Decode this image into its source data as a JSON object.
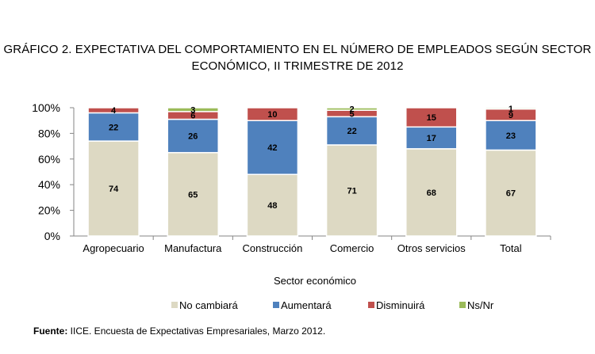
{
  "title_line1": "GRÁFICO 2. EXPECTATIVA DEL COMPORTAMIENTO EN EL NÚMERO DE EMPLEADOS SEGÚN SECTOR",
  "title_line2": "ECONÓMICO,  II TRIMESTRE DE 2012",
  "footer": {
    "label": "Fuente:",
    "text": " IICE. Encuesta de Expectativas Empresariales, Marzo  2012."
  },
  "chart_data": {
    "type": "bar",
    "stacked": true,
    "categories": [
      "Agropecuario",
      "Manufactura",
      "Construcción",
      "Comercio",
      "Otros servicios",
      "Total"
    ],
    "series": [
      {
        "name": "No cambiará",
        "color": "#ddd9c3",
        "values": [
          74,
          65,
          48,
          71,
          68,
          67
        ]
      },
      {
        "name": "Aumentará",
        "color": "#4f81bd",
        "values": [
          22,
          26,
          42,
          22,
          17,
          23
        ]
      },
      {
        "name": "Disminuirá",
        "color": "#c0504d",
        "values": [
          4,
          6,
          10,
          5,
          15,
          9
        ]
      },
      {
        "name": "Ns/Nr",
        "color": "#9bbb59",
        "values": [
          0,
          3,
          0,
          2,
          0,
          1
        ]
      }
    ],
    "xlabel": "Sector económico",
    "ylabel": "",
    "ylim": [
      0,
      100
    ],
    "yticks": [
      "0%",
      "20%",
      "40%",
      "60%",
      "80%",
      "100%"
    ],
    "legend_position": "bottom",
    "grid": false
  }
}
